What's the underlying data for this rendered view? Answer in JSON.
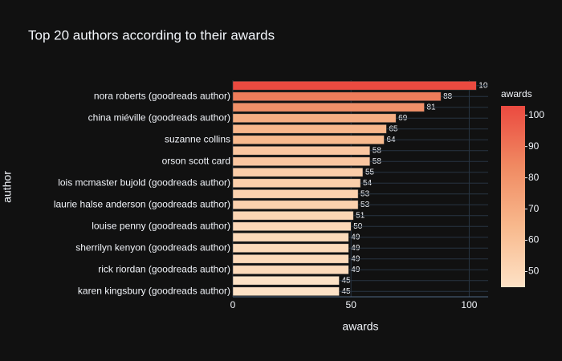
{
  "chart_data": {
    "type": "bar",
    "orientation": "horizontal",
    "title": "Top 20 authors according to their awards",
    "x_label": "awards",
    "y_label": "author",
    "categories": [
      null,
      "nora roberts (goodreads author)",
      null,
      "china miéville (goodreads author)",
      null,
      "suzanne collins",
      null,
      "orson scott card",
      null,
      "lois mcmaster bujold (goodreads author)",
      null,
      "laurie halse anderson (goodreads author)",
      null,
      "louise penny (goodreads author)",
      null,
      "sherrilyn kenyon (goodreads author)",
      null,
      "rick riordan (goodreads author)",
      null,
      "karen kingsbury (goodreads author)"
    ],
    "values": [
      103,
      88,
      81,
      69,
      65,
      64,
      58,
      58,
      55,
      54,
      53,
      53,
      51,
      50,
      49,
      49,
      49,
      49,
      45,
      45
    ],
    "xlim": [
      0,
      108
    ],
    "xticks": [
      0,
      50,
      100
    ],
    "grid": true,
    "colorbar": {
      "title": "awards",
      "cmin": 45,
      "cmax": 103,
      "ticks": [
        50,
        60,
        70,
        80,
        90,
        100
      ],
      "colorscale": [
        "#fde2c6",
        "#f8b98d",
        "#f08a62",
        "#eb4a40"
      ]
    }
  }
}
